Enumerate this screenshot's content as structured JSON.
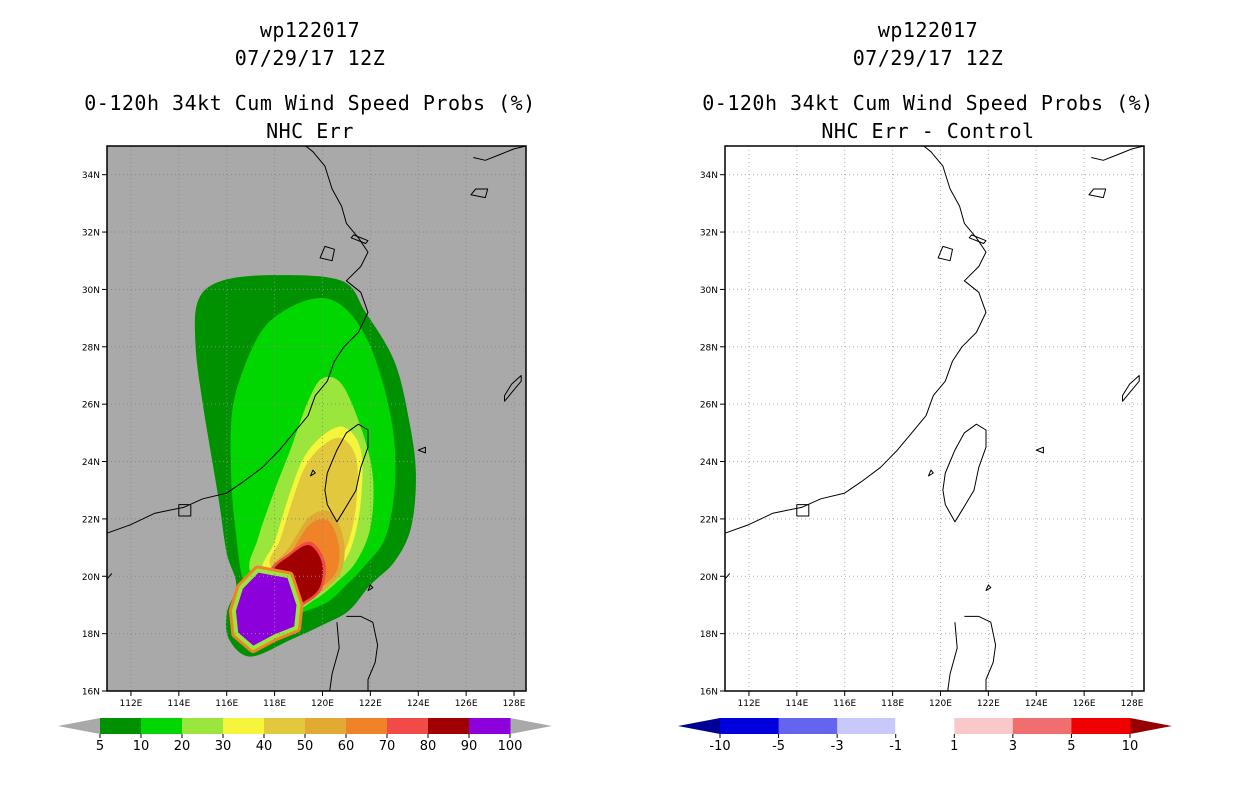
{
  "left_panel": {
    "header_line1": "wp122017",
    "header_line2": "07/29/17 12Z",
    "title_line1": "0-120h 34kt Cum Wind Speed Probs (%)",
    "title_line2": "NHC Err",
    "background_color": "#a9a9a9"
  },
  "right_panel": {
    "header_line1": "wp122017",
    "header_line2": "07/29/17 12Z",
    "title_line1": "0-120h 34kt Cum Wind Speed Probs (%)",
    "title_line2": "NHC Err - Control",
    "background_color": "#ffffff"
  },
  "axes": {
    "lat_labels": [
      "16N",
      "18N",
      "20N",
      "22N",
      "24N",
      "26N",
      "28N",
      "30N",
      "32N",
      "34N"
    ],
    "lon_labels": [
      "112E",
      "114E",
      "116E",
      "118E",
      "120E",
      "122E",
      "124E",
      "126E",
      "128E"
    ]
  },
  "left_colorbar": {
    "labels": [
      "5",
      "10",
      "20",
      "30",
      "40",
      "50",
      "60",
      "70",
      "80",
      "90",
      "100"
    ],
    "colors": [
      "#009100",
      "#00d700",
      "#9be63c",
      "#f5f53c",
      "#e1c83c",
      "#e1aa32",
      "#f08228",
      "#f04b46",
      "#a00000",
      "#8c00dc"
    ],
    "end_color": "#a9a9a9"
  },
  "right_colorbar": {
    "labels": [
      "-10",
      "-5",
      "-3",
      "-1",
      "1",
      "3",
      "5",
      "10"
    ],
    "colors": [
      "#0000dc",
      "#6464f0",
      "#c8c8fa",
      "#ffffff",
      "#fac8c8",
      "#f06e6e",
      "#f00000"
    ],
    "end_low_color": "#000096",
    "end_high_color": "#960000"
  },
  "chart_data": {
    "type": "heatmap",
    "storm_id": "wp122017",
    "valid_time": "07/29/17 12Z",
    "variable": "0-120h 34kt Cum Wind Speed Probs (%)",
    "lon_range": [
      111,
      128.5
    ],
    "lat_range": [
      16,
      35
    ],
    "lon_ticks": [
      112,
      114,
      116,
      118,
      120,
      122,
      124,
      126,
      128
    ],
    "lat_ticks": [
      16,
      18,
      20,
      22,
      24,
      26,
      28,
      30,
      32,
      34
    ],
    "probability_levels": [
      5,
      10,
      20,
      30,
      40,
      50,
      60,
      70,
      80,
      90,
      100
    ],
    "difference_levels": [
      -10,
      -5,
      -3,
      -1,
      1,
      3,
      5,
      10
    ],
    "probability_contours": [
      {
        "level": 5,
        "outline": [
          [
            116.4,
            19.7
          ],
          [
            116.0,
            20.8
          ],
          [
            115.7,
            22.5
          ],
          [
            115.4,
            24.0
          ],
          [
            115.0,
            26.0
          ],
          [
            114.7,
            28.0
          ],
          [
            114.8,
            29.6
          ],
          [
            115.8,
            30.3
          ],
          [
            118.0,
            30.5
          ],
          [
            120.8,
            30.3
          ],
          [
            121.8,
            29.2
          ],
          [
            123.0,
            27.5
          ],
          [
            123.6,
            25.5
          ],
          [
            123.9,
            23.6
          ],
          [
            123.7,
            21.7
          ],
          [
            123.0,
            20.5
          ],
          [
            122.0,
            19.7
          ],
          [
            121.1,
            18.8
          ],
          [
            120.0,
            18.3
          ],
          [
            118.7,
            17.8
          ],
          [
            117.0,
            17.2
          ],
          [
            116.1,
            17.8
          ],
          [
            116.0,
            18.7
          ]
        ]
      },
      {
        "level": 10,
        "outline": [
          [
            116.7,
            19.8
          ],
          [
            116.4,
            21.4
          ],
          [
            116.2,
            23.2
          ],
          [
            116.2,
            25.5
          ],
          [
            116.6,
            27.0
          ],
          [
            117.5,
            28.6
          ],
          [
            118.7,
            29.4
          ],
          [
            120.0,
            29.7
          ],
          [
            121.0,
            29.3
          ],
          [
            121.9,
            28.2
          ],
          [
            122.6,
            26.5
          ],
          [
            123.0,
            24.7
          ],
          [
            123.0,
            22.9
          ],
          [
            122.6,
            21.3
          ],
          [
            121.8,
            20.4
          ],
          [
            121.0,
            19.7
          ],
          [
            120.2,
            19.1
          ],
          [
            119.0,
            18.7
          ],
          [
            117.5,
            18.3
          ]
        ]
      },
      {
        "level": 20,
        "outline": [
          [
            117.0,
            20.1
          ],
          [
            117.3,
            21.3
          ],
          [
            118.0,
            23.0
          ],
          [
            118.7,
            24.5
          ],
          [
            119.4,
            26.1
          ],
          [
            120.0,
            26.9
          ],
          [
            120.8,
            26.7
          ],
          [
            121.6,
            25.2
          ],
          [
            122.1,
            23.5
          ],
          [
            122.0,
            21.7
          ],
          [
            121.4,
            20.5
          ],
          [
            120.6,
            19.8
          ],
          [
            119.7,
            19.2
          ],
          [
            118.5,
            18.8
          ]
        ]
      },
      {
        "level": 30,
        "outline": [
          [
            117.5,
            20.2
          ],
          [
            118.0,
            21.2
          ],
          [
            118.6,
            22.8
          ],
          [
            119.2,
            24.1
          ],
          [
            120.0,
            24.9
          ],
          [
            120.9,
            25.2
          ],
          [
            121.6,
            24.4
          ],
          [
            121.6,
            22.6
          ],
          [
            121.2,
            21.0
          ],
          [
            120.5,
            20.1
          ],
          [
            119.6,
            19.5
          ],
          [
            118.5,
            19.2
          ]
        ]
      },
      {
        "level": 50,
        "outline": [
          [
            117.8,
            20.1
          ],
          [
            118.6,
            21.0
          ],
          [
            119.5,
            22.1
          ],
          [
            120.4,
            22.2
          ],
          [
            120.9,
            21.2
          ],
          [
            120.8,
            20.2
          ],
          [
            120.2,
            19.6
          ],
          [
            119.4,
            19.2
          ],
          [
            118.6,
            19.0
          ]
        ]
      },
      {
        "level": 70,
        "outline": [
          [
            117.8,
            20.1
          ],
          [
            118.6,
            20.8
          ],
          [
            119.5,
            21.2
          ],
          [
            120.1,
            20.5
          ],
          [
            120.0,
            19.6
          ],
          [
            119.4,
            19.1
          ],
          [
            118.6,
            18.9
          ]
        ]
      },
      {
        "level": 90,
        "outline": [
          [
            116.3,
            18.8
          ],
          [
            116.6,
            19.6
          ],
          [
            117.3,
            20.2
          ],
          [
            118.6,
            20.0
          ],
          [
            119.0,
            19.0
          ],
          [
            118.9,
            18.2
          ],
          [
            118.0,
            17.9
          ],
          [
            117.1,
            17.5
          ],
          [
            116.4,
            18.0
          ]
        ]
      }
    ],
    "difference_field": "all values between -1 and 1 (no shaded areas)"
  }
}
